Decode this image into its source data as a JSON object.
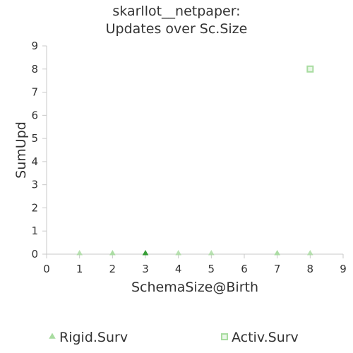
{
  "chart_data": {
    "type": "scatter",
    "title": [
      "skarllot__netpaper:",
      "Updates over Sc.Size"
    ],
    "xlabel": "SchemaSize@Birth",
    "ylabel": "SumUpd",
    "xlim": [
      0,
      9
    ],
    "ylim": [
      0,
      9
    ],
    "xticks": [
      0,
      1,
      2,
      3,
      4,
      5,
      6,
      7,
      8,
      9
    ],
    "yticks": [
      0,
      1,
      2,
      3,
      4,
      5,
      6,
      7,
      8,
      9
    ],
    "grid": false,
    "legend_position": "bottom",
    "series": [
      {
        "name": "Rigid.Surv",
        "marker": "triangle",
        "color": "#a8dca0",
        "points": [
          {
            "x": 1,
            "y": 0
          },
          {
            "x": 2,
            "y": 0
          },
          {
            "x": 3,
            "y": 0
          },
          {
            "x": 4,
            "y": 0
          },
          {
            "x": 5,
            "y": 0
          },
          {
            "x": 7,
            "y": 0
          },
          {
            "x": 8,
            "y": 0
          }
        ]
      },
      {
        "name": "Activ.Surv",
        "marker": "square",
        "color": "#a8dca0",
        "points": [
          {
            "x": 8,
            "y": 8
          }
        ]
      }
    ],
    "dense_point_color": "#2e9a2e"
  }
}
